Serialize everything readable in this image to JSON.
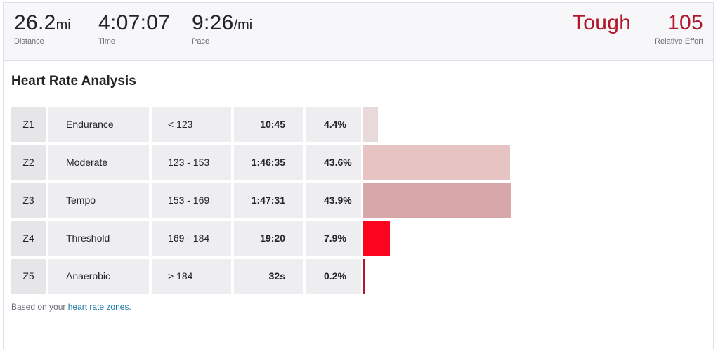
{
  "stats": {
    "distance": {
      "value": "26.2",
      "unit": "mi",
      "label": "Distance"
    },
    "time": {
      "value": "4:07:07",
      "label": "Time"
    },
    "pace": {
      "value": "9:26",
      "unit": "/mi",
      "label": "Pace"
    },
    "effort_word": "Tough",
    "relative_effort": {
      "value": "105",
      "label": "Relative Effort"
    }
  },
  "section_title": "Heart Rate Analysis",
  "zones": [
    {
      "zone": "Z1",
      "name": "Endurance",
      "range": "< 123",
      "time": "10:45",
      "pct": "4.4%",
      "share": 0.044,
      "color": "#e8d9db"
    },
    {
      "zone": "Z2",
      "name": "Moderate",
      "range": "123 - 153",
      "time": "1:46:35",
      "pct": "43.6%",
      "share": 0.436,
      "color": "#e7c3c4"
    },
    {
      "zone": "Z3",
      "name": "Tempo",
      "range": "153 - 169",
      "time": "1:47:31",
      "pct": "43.9%",
      "share": 0.439,
      "color": "#d8a7a9"
    },
    {
      "zone": "Z4",
      "name": "Threshold",
      "range": "169 - 184",
      "time": "19:20",
      "pct": "7.9%",
      "share": 0.079,
      "color": "#fb0420"
    },
    {
      "zone": "Z5",
      "name": "Anaerobic",
      "range": "> 184",
      "time": "32s",
      "pct": "0.2%",
      "share": 0.002,
      "color": "#b3172b"
    }
  ],
  "footnote": {
    "text": "Based on your",
    "link": "heart rate zones."
  }
}
